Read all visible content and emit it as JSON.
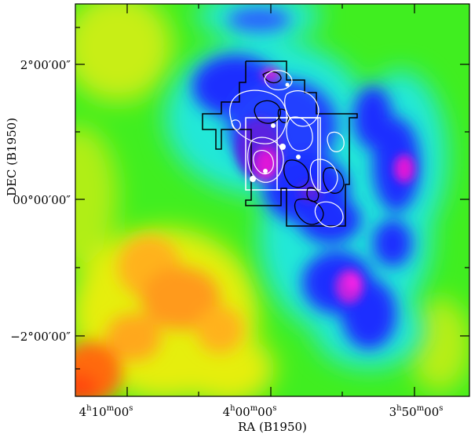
{
  "figure": {
    "x_axis_label": "RA (B1950)",
    "y_axis_label": "DEC (B1950)",
    "x_ticks": [
      {
        "h": "4",
        "m": "10",
        "s": "00"
      },
      {
        "h": "4",
        "m": "00",
        "s": "00"
      },
      {
        "h": "3",
        "m": "50",
        "s": "00"
      }
    ],
    "y_ticks": [
      "2°00′00″",
      "00°00′00″",
      "−2°00′00″"
    ],
    "unit_h": "h",
    "unit_m": "m",
    "unit_s": "s"
  },
  "colors": {
    "background_green": "#40ee20",
    "yellow": "#e6ee10",
    "orange": "#ff9a1a",
    "red": "#ff4a10",
    "cyan": "#20e8d8",
    "blue": "#1a2dff",
    "purple": "#5a20e0",
    "magenta": "#e018d8",
    "contour_black": "#000000",
    "contour_white": "#ffffff"
  }
}
